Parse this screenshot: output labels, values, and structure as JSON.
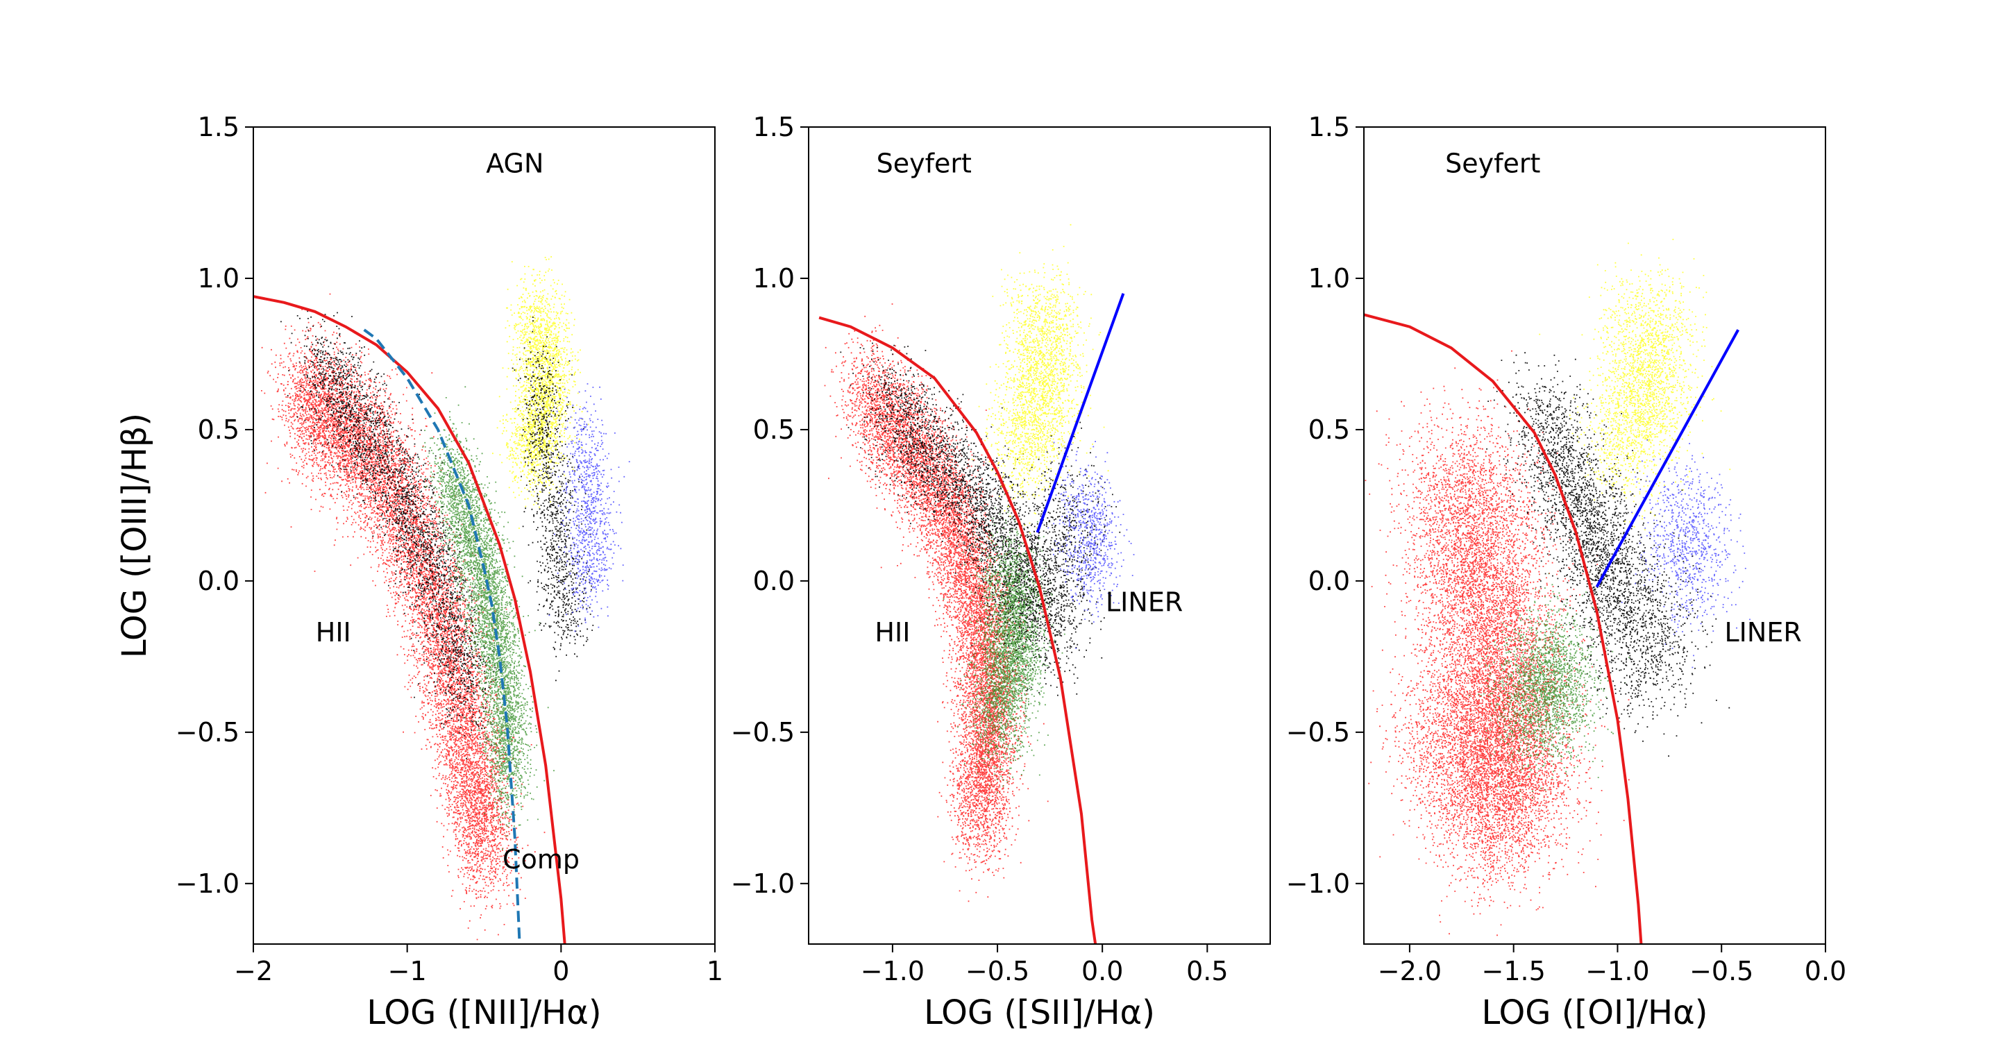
{
  "chart_data": [
    {
      "type": "scatter",
      "panel": "NII",
      "xlabel": "LOG ([NII]/Hα)",
      "ylabel": "LOG ([OIII]/Hβ)",
      "xlim": [
        -2,
        1
      ],
      "ylim": [
        -1.2,
        1.5
      ],
      "xticks": [
        -2,
        -1,
        0,
        1
      ],
      "xtick_labels": [
        "−2",
        "−1",
        "0",
        "1"
      ],
      "yticks": [
        -1.0,
        -0.5,
        0.0,
        0.5,
        1.0,
        1.5
      ],
      "ytick_labels": [
        "−1.0",
        "−0.5",
        "0.0",
        "0.5",
        "1.0",
        "1.5"
      ],
      "annotations": [
        {
          "text": "AGN",
          "x": -0.3,
          "y": 1.38
        },
        {
          "text": "HII",
          "x": -1.48,
          "y": -0.17
        },
        {
          "text": "Comp",
          "x": -0.13,
          "y": -0.92
        }
      ],
      "lines": [
        {
          "kind": "maximum starburst",
          "color": "#e8191c",
          "style": "solid",
          "points": [
            [
              -2.0,
              0.94
            ],
            [
              -1.8,
              0.92
            ],
            [
              -1.6,
              0.89
            ],
            [
              -1.4,
              0.84
            ],
            [
              -1.2,
              0.78
            ],
            [
              -1.0,
              0.69
            ],
            [
              -0.8,
              0.57
            ],
            [
              -0.6,
              0.39
            ],
            [
              -0.4,
              0.12
            ],
            [
              -0.3,
              -0.06
            ],
            [
              -0.2,
              -0.3
            ],
            [
              -0.1,
              -0.61
            ],
            [
              0.0,
              -1.05
            ],
            [
              0.05,
              -1.36
            ]
          ]
        },
        {
          "kind": "empirical star-forming",
          "color": "#1f77b4",
          "style": "dashed",
          "points": [
            [
              -1.28,
              0.83
            ],
            [
              -1.2,
              0.8
            ],
            [
              -1.0,
              0.67
            ],
            [
              -0.8,
              0.5
            ],
            [
              -0.6,
              0.25
            ],
            [
              -0.5,
              0.04
            ],
            [
              -0.45,
              -0.08
            ],
            [
              -0.4,
              -0.25
            ],
            [
              -0.35,
              -0.48
            ],
            [
              -0.3,
              -0.85
            ],
            [
              -0.25,
              -1.42
            ]
          ]
        }
      ],
      "clouds": [
        {
          "color": "#ff0000",
          "points": [
            [
              -1.7,
              0.6
            ],
            [
              -1.5,
              0.55
            ],
            [
              -1.3,
              0.45
            ],
            [
              -1.1,
              0.3
            ],
            [
              -0.9,
              0.05
            ],
            [
              -0.75,
              -0.2
            ],
            [
              -0.65,
              -0.45
            ],
            [
              -0.55,
              -0.7
            ],
            [
              -0.48,
              -0.9
            ]
          ],
          "spread": [
            0.1,
            0.11
          ],
          "count": 9500
        },
        {
          "color": "#000000",
          "points": [
            [
              -1.6,
              0.72
            ],
            [
              -1.4,
              0.6
            ],
            [
              -1.2,
              0.45
            ],
            [
              -1.0,
              0.25
            ],
            [
              -0.85,
              0.08
            ],
            [
              -0.72,
              -0.15
            ],
            [
              -0.6,
              -0.38
            ]
          ],
          "spread": [
            0.09,
            0.09
          ],
          "count": 2600
        },
        {
          "color": "#2e8b20",
          "points": [
            [
              -0.75,
              0.38
            ],
            [
              -0.6,
              0.18
            ],
            [
              -0.5,
              0.0
            ],
            [
              -0.42,
              -0.2
            ],
            [
              -0.36,
              -0.45
            ],
            [
              -0.34,
              -0.65
            ]
          ],
          "spread": [
            0.07,
            0.09
          ],
          "count": 4500
        },
        {
          "color": "#ffff00",
          "points": [
            [
              -0.15,
              0.9
            ],
            [
              -0.12,
              0.75
            ],
            [
              -0.1,
              0.62
            ],
            [
              -0.15,
              0.5
            ],
            [
              -0.2,
              0.4
            ]
          ],
          "spread": [
            0.09,
            0.08
          ],
          "count": 2400
        },
        {
          "color": "#000000",
          "points": [
            [
              -0.15,
              0.68
            ],
            [
              -0.1,
              0.45
            ],
            [
              -0.05,
              0.22
            ],
            [
              0.0,
              0.0
            ],
            [
              0.05,
              -0.12
            ]
          ],
          "spread": [
            0.07,
            0.09
          ],
          "count": 1100
        },
        {
          "color": "#3333ff",
          "points": [
            [
              0.12,
              0.5
            ],
            [
              0.18,
              0.3
            ],
            [
              0.2,
              0.12
            ],
            [
              0.15,
              -0.02
            ]
          ],
          "spread": [
            0.08,
            0.08
          ],
          "count": 900
        }
      ]
    },
    {
      "type": "scatter",
      "panel": "SII",
      "xlabel": "LOG ([SII]/Hα)",
      "ylabel": "",
      "xlim": [
        -1.4,
        0.8
      ],
      "ylim": [
        -1.2,
        1.5
      ],
      "xticks": [
        -1.0,
        -0.5,
        0.0,
        0.5
      ],
      "xtick_labels": [
        "−1.0",
        "−0.5",
        "0.0",
        "0.5"
      ],
      "yticks": [
        -1.0,
        -0.5,
        0.0,
        0.5,
        1.0,
        1.5
      ],
      "ytick_labels": [
        "−1.0",
        "−0.5",
        "0.0",
        "0.5",
        "1.0",
        "1.5"
      ],
      "annotations": [
        {
          "text": "Seyfert",
          "x": -0.85,
          "y": 1.38
        },
        {
          "text": "HII",
          "x": -1.0,
          "y": -0.17
        },
        {
          "text": "LINER",
          "x": 0.2,
          "y": -0.07
        }
      ],
      "lines": [
        {
          "kind": "maximum starburst",
          "color": "#e8191c",
          "style": "solid",
          "points": [
            [
              -1.35,
              0.87
            ],
            [
              -1.2,
              0.84
            ],
            [
              -1.0,
              0.77
            ],
            [
              -0.8,
              0.67
            ],
            [
              -0.6,
              0.49
            ],
            [
              -0.5,
              0.36
            ],
            [
              -0.4,
              0.2
            ],
            [
              -0.3,
              -0.02
            ],
            [
              -0.2,
              -0.32
            ],
            [
              -0.1,
              -0.77
            ],
            [
              -0.05,
              -1.12
            ],
            [
              0.0,
              -1.36
            ]
          ]
        },
        {
          "kind": "Seyfert-LINER",
          "color": "#0000ff",
          "style": "solid",
          "points": [
            [
              -0.31,
              0.16
            ],
            [
              0.1,
              0.95
            ]
          ]
        }
      ],
      "clouds": [
        {
          "color": "#ff0000",
          "points": [
            [
              -1.15,
              0.62
            ],
            [
              -0.95,
              0.48
            ],
            [
              -0.8,
              0.32
            ],
            [
              -0.68,
              0.12
            ],
            [
              -0.58,
              -0.12
            ],
            [
              -0.55,
              -0.35
            ],
            [
              -0.55,
              -0.58
            ],
            [
              -0.6,
              -0.8
            ]
          ],
          "spread": [
            0.07,
            0.1
          ],
          "count": 9000
        },
        {
          "color": "#000000",
          "points": [
            [
              -1.05,
              0.62
            ],
            [
              -0.85,
              0.45
            ],
            [
              -0.65,
              0.32
            ],
            [
              -0.5,
              0.18
            ],
            [
              -0.4,
              0.02
            ],
            [
              -0.35,
              -0.15
            ]
          ],
          "spread": [
            0.08,
            0.09
          ],
          "count": 2800
        },
        {
          "color": "#2e8b20",
          "points": [
            [
              -0.45,
              0.05
            ],
            [
              -0.42,
              -0.15
            ],
            [
              -0.45,
              -0.3
            ],
            [
              -0.5,
              -0.48
            ]
          ],
          "spread": [
            0.07,
            0.09
          ],
          "count": 3200
        },
        {
          "color": "#ffff00",
          "points": [
            [
              -0.28,
              0.9
            ],
            [
              -0.28,
              0.72
            ],
            [
              -0.32,
              0.55
            ],
            [
              -0.38,
              0.4
            ]
          ],
          "spread": [
            0.09,
            0.09
          ],
          "count": 2200
        },
        {
          "color": "#000000",
          "points": [
            [
              -0.15,
              0.3
            ],
            [
              -0.2,
              0.12
            ],
            [
              -0.22,
              -0.05
            ],
            [
              -0.25,
              -0.2
            ]
          ],
          "spread": [
            0.09,
            0.1
          ],
          "count": 900
        },
        {
          "color": "#3333ff",
          "points": [
            [
              -0.1,
              0.28
            ],
            [
              -0.05,
              0.15
            ],
            [
              -0.05,
              0.02
            ]
          ],
          "spread": [
            0.07,
            0.08
          ],
          "count": 700
        }
      ]
    },
    {
      "type": "scatter",
      "panel": "OI",
      "xlabel": "LOG ([OI]/Hα)",
      "ylabel": "",
      "xlim": [
        -2.22,
        0.0
      ],
      "ylim": [
        -1.2,
        1.5
      ],
      "xticks": [
        -2.0,
        -1.5,
        -1.0,
        -0.5,
        0.0
      ],
      "xtick_labels": [
        "−2.0",
        "−1.5",
        "−1.0",
        "−0.5",
        "0.0"
      ],
      "yticks": [
        -1.0,
        -0.5,
        0.0,
        0.5,
        1.0,
        1.5
      ],
      "ytick_labels": [
        "−1.0",
        "−0.5",
        "0.0",
        "0.5",
        "1.0",
        "1.5"
      ],
      "annotations": [
        {
          "text": "Seyfert",
          "x": -1.6,
          "y": 1.38
        },
        {
          "text": "LINER",
          "x": -0.3,
          "y": -0.17
        }
      ],
      "lines": [
        {
          "kind": "maximum starburst",
          "color": "#e8191c",
          "style": "solid",
          "points": [
            [
              -2.22,
              0.88
            ],
            [
              -2.0,
              0.84
            ],
            [
              -1.8,
              0.77
            ],
            [
              -1.6,
              0.66
            ],
            [
              -1.4,
              0.49
            ],
            [
              -1.3,
              0.35
            ],
            [
              -1.2,
              0.16
            ],
            [
              -1.1,
              -0.1
            ],
            [
              -1.0,
              -0.46
            ],
            [
              -0.95,
              -0.72
            ],
            [
              -0.9,
              -1.07
            ],
            [
              -0.87,
              -1.36
            ]
          ]
        },
        {
          "kind": "Seyfert-LINER",
          "color": "#0000ff",
          "style": "solid",
          "points": [
            [
              -1.1,
              -0.02
            ],
            [
              -0.42,
              0.83
            ]
          ]
        }
      ],
      "clouds": [
        {
          "color": "#ff0000",
          "points": [
            [
              -1.75,
              0.35
            ],
            [
              -1.68,
              0.1
            ],
            [
              -1.62,
              -0.15
            ],
            [
              -1.58,
              -0.4
            ],
            [
              -1.55,
              -0.6
            ],
            [
              -1.55,
              -0.78
            ],
            [
              -1.85,
              -0.45
            ]
          ],
          "spread": [
            0.16,
            0.14
          ],
          "count": 11000
        },
        {
          "color": "#000000",
          "points": [
            [
              -1.4,
              0.55
            ],
            [
              -1.25,
              0.38
            ],
            [
              -1.15,
              0.2
            ],
            [
              -1.05,
              0.05
            ],
            [
              -1.0,
              -0.15
            ]
          ],
          "spread": [
            0.1,
            0.1
          ],
          "count": 2400
        },
        {
          "color": "#2e8b20",
          "points": [
            [
              -1.3,
              -0.25
            ],
            [
              -1.35,
              -0.35
            ],
            [
              -1.4,
              -0.45
            ]
          ],
          "spread": [
            0.11,
            0.1
          ],
          "count": 2200
        },
        {
          "color": "#ffff00",
          "points": [
            [
              -0.85,
              0.9
            ],
            [
              -0.85,
              0.72
            ],
            [
              -0.9,
              0.55
            ],
            [
              -0.95,
              0.42
            ]
          ],
          "spread": [
            0.11,
            0.1
          ],
          "count": 2200
        },
        {
          "color": "#3333ff",
          "points": [
            [
              -0.72,
              0.28
            ],
            [
              -0.65,
              0.12
            ],
            [
              -0.65,
              -0.02
            ]
          ],
          "spread": [
            0.1,
            0.09
          ],
          "count": 800
        },
        {
          "color": "#000000",
          "points": [
            [
              -0.85,
              -0.05
            ],
            [
              -0.8,
              -0.22
            ],
            [
              -0.95,
              -0.3
            ]
          ],
          "spread": [
            0.11,
            0.11
          ],
          "count": 700
        }
      ]
    }
  ]
}
